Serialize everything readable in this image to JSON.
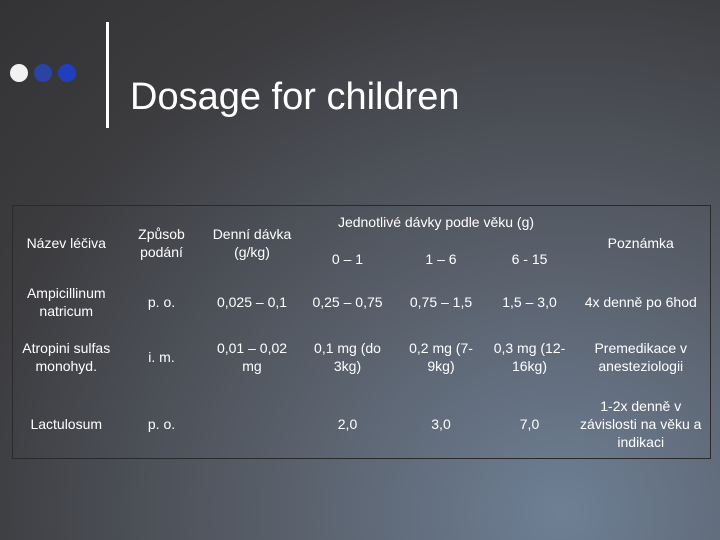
{
  "title": "Dosage for children",
  "table": {
    "headers": {
      "name": "Název léčiva",
      "route": "Způsob podání",
      "daily": "Denní dávka (g/kg)",
      "single_doses": "Jednotlivé dávky podle věku (g)",
      "age_groups": [
        "0 – 1",
        "1 – 6",
        "6 - 15"
      ],
      "note": "Poznámka"
    },
    "rows": [
      {
        "name": "Ampicillinum natricum",
        "route": "p. o.",
        "daily": "0,025 – 0,1",
        "doses": [
          "0,25 – 0,75",
          "0,75 – 1,5",
          "1,5 – 3,0"
        ],
        "note": "4x denně po 6hod"
      },
      {
        "name": "Atropini sulfas monohyd.",
        "route": "i. m.",
        "daily": "0,01 – 0,02 mg",
        "doses": [
          "0,1 mg (do 3kg)",
          "0,2 mg (7-9kg)",
          "0,3 mg (12-16kg)"
        ],
        "note": "Premedikace v anesteziologii"
      },
      {
        "name": "Lactulosum",
        "route": "p. o.",
        "daily": "",
        "doses": [
          "2,0",
          "3,0",
          "7,0"
        ],
        "note": "1-2x denně v závislosti na věku a indikaci"
      }
    ]
  }
}
